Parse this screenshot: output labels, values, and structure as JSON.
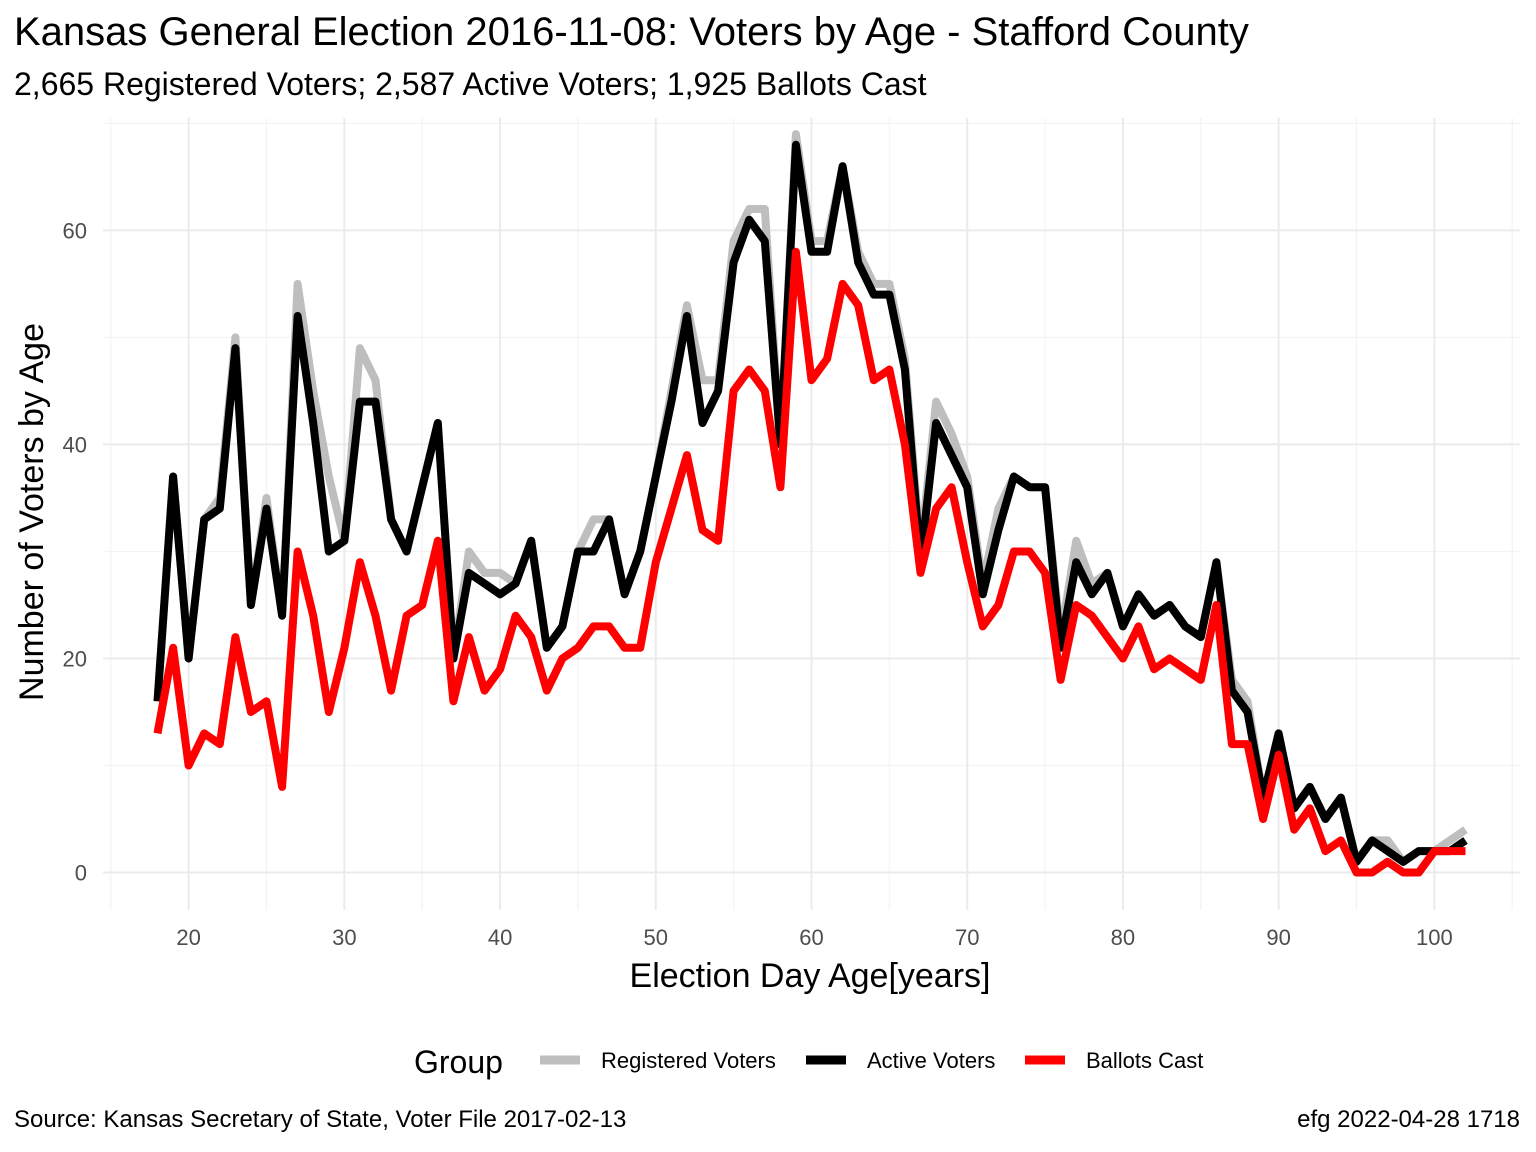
{
  "chart_data": {
    "type": "line",
    "title": "Kansas General Election 2016-11-08:  Voters by Age - Stafford County",
    "subtitle": "2,665 Registered Voters; 2,587 Active Voters; 1,925 Ballots Cast",
    "xlabel": "Election Day Age[years]",
    "ylabel": "Number of Voters by Age",
    "xlim": [
      14.5,
      105.5
    ],
    "ylim": [
      -3.5,
      70.5
    ],
    "x_ticks": [
      20,
      30,
      40,
      50,
      60,
      70,
      80,
      90,
      100
    ],
    "y_ticks": [
      0,
      20,
      40,
      60
    ],
    "grid": true,
    "legend_title": "Group",
    "legend_position": "bottom",
    "x_start": 18,
    "series": [
      {
        "name": "Registered Voters",
        "color": "#BEBEBE",
        "values": [
          16,
          37,
          20,
          33,
          35,
          50,
          25,
          35,
          24,
          55,
          45,
          37,
          31,
          49,
          46,
          33,
          30,
          36,
          42,
          20,
          30,
          28,
          28,
          27,
          31,
          21,
          23,
          30,
          33,
          33,
          26,
          30,
          37,
          45,
          53,
          46,
          46,
          59,
          62,
          62,
          40,
          69,
          59,
          59,
          66,
          58,
          55,
          55,
          48,
          30,
          44,
          41,
          37,
          27,
          34,
          37,
          36,
          36,
          22,
          31,
          27,
          28,
          23,
          26,
          24,
          25,
          23,
          22,
          29,
          18,
          16,
          7,
          13,
          6,
          8,
          5,
          7,
          1,
          3,
          3,
          1,
          2,
          2,
          3,
          4
        ]
      },
      {
        "name": "Active Voters",
        "color": "#000000",
        "values": [
          16,
          37,
          20,
          33,
          34,
          49,
          25,
          34,
          24,
          52,
          42,
          30,
          31,
          44,
          44,
          33,
          30,
          36,
          42,
          20,
          28,
          27,
          26,
          27,
          31,
          21,
          23,
          30,
          30,
          33,
          26,
          30,
          37,
          44,
          52,
          42,
          45,
          57,
          61,
          59,
          40,
          68,
          58,
          58,
          66,
          57,
          54,
          54,
          47,
          29,
          42,
          39,
          36,
          26,
          32,
          37,
          36,
          36,
          21,
          29,
          26,
          28,
          23,
          26,
          24,
          25,
          23,
          22,
          29,
          17,
          15,
          7,
          13,
          6,
          8,
          5,
          7,
          1,
          3,
          2,
          1,
          2,
          2,
          2,
          3
        ]
      },
      {
        "name": "Ballots Cast",
        "color": "#FF0000",
        "values": [
          13,
          21,
          10,
          13,
          12,
          22,
          15,
          16,
          8,
          30,
          24,
          15,
          21,
          29,
          24,
          17,
          24,
          25,
          31,
          16,
          22,
          17,
          19,
          24,
          22,
          17,
          20,
          21,
          23,
          23,
          21,
          21,
          29,
          34,
          39,
          32,
          31,
          45,
          47,
          45,
          36,
          58,
          46,
          48,
          55,
          53,
          46,
          47,
          40,
          28,
          34,
          36,
          29,
          23,
          25,
          30,
          30,
          28,
          18,
          25,
          24,
          22,
          20,
          23,
          19,
          20,
          19,
          18,
          25,
          12,
          12,
          5,
          11,
          4,
          6,
          2,
          3,
          0,
          0,
          1,
          0,
          0,
          2,
          2,
          2
        ]
      }
    ]
  },
  "footer": {
    "source": "Source:  Kansas Secretary of State, Voter File  2017-02-13",
    "credit": "efg 2022-04-28 1718"
  }
}
